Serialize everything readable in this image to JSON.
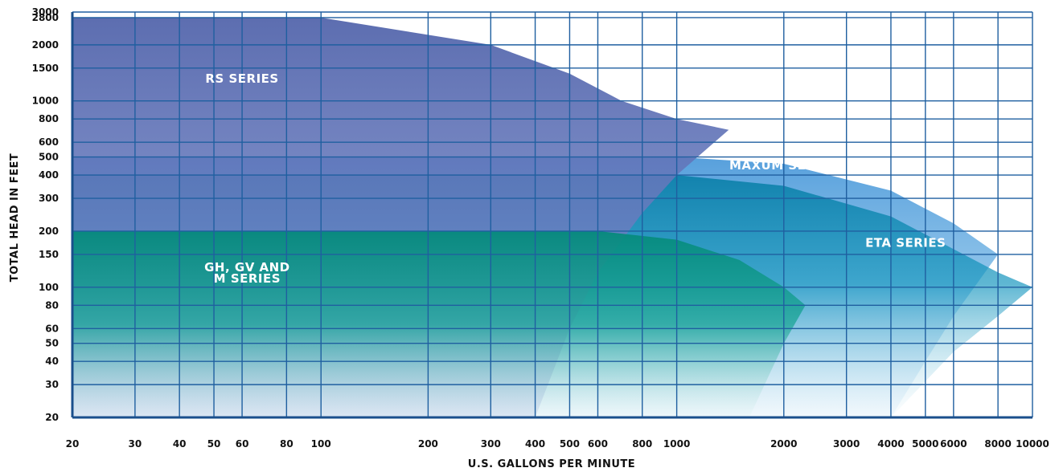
{
  "chart_data": {
    "type": "area",
    "xlabel": "U.S. GALLONS PER MINUTE",
    "ylabel": "TOTAL HEAD IN FEET",
    "x_scale": "log",
    "y_scale": "log",
    "xlim": [
      20,
      10000
    ],
    "ylim": [
      20,
      3000
    ],
    "grid": true,
    "x_ticks": [
      "20",
      "30",
      "40",
      "50",
      "60",
      "80",
      "100",
      "200",
      "300",
      "400",
      "500",
      "600",
      "800",
      "1000",
      "2000",
      "3000",
      "4000",
      "5000",
      "6000",
      "8000",
      "10000"
    ],
    "y_ticks": [
      "3000",
      "2800",
      "2000",
      "1500",
      "1000",
      "800",
      "600",
      "500",
      "400",
      "300",
      "200",
      "150",
      "100",
      "80",
      "60",
      "50",
      "40",
      "30",
      "20"
    ],
    "regions": [
      {
        "label": "RS SERIES",
        "color": "#5a6fb0",
        "boundary": [
          [
            20,
            20
          ],
          [
            20,
            2800
          ],
          [
            100,
            2800
          ],
          [
            300,
            2000
          ],
          [
            500,
            1400
          ],
          [
            700,
            1000
          ],
          [
            1000,
            800
          ],
          [
            1400,
            700
          ],
          [
            1000,
            400
          ],
          [
            800,
            250
          ],
          [
            600,
            120
          ],
          [
            500,
            60
          ],
          [
            400,
            20
          ]
        ]
      },
      {
        "label": "MAXUM SERIES",
        "color": "#2a8fd0",
        "boundary": [
          [
            20,
            20
          ],
          [
            20,
            500
          ],
          [
            1000,
            500
          ],
          [
            2000,
            460
          ],
          [
            4000,
            330
          ],
          [
            6000,
            220
          ],
          [
            8000,
            150
          ],
          [
            6000,
            70
          ],
          [
            5000,
            40
          ],
          [
            4000,
            20
          ]
        ]
      },
      {
        "label": "ETA SERIES",
        "color": "#0590b8",
        "boundary": [
          [
            20,
            20
          ],
          [
            20,
            400
          ],
          [
            1000,
            400
          ],
          [
            2000,
            350
          ],
          [
            4000,
            240
          ],
          [
            6000,
            160
          ],
          [
            8000,
            120
          ],
          [
            10000,
            100
          ],
          [
            8000,
            70
          ],
          [
            6000,
            45
          ],
          [
            4000,
            20
          ]
        ]
      },
      {
        "label": "GH, GV AND",
        "label2": "M SERIES",
        "color": "#07968a",
        "boundary": [
          [
            20,
            20
          ],
          [
            20,
            200
          ],
          [
            600,
            200
          ],
          [
            1000,
            180
          ],
          [
            1500,
            140
          ],
          [
            2000,
            100
          ],
          [
            2300,
            80
          ],
          [
            2000,
            50
          ],
          [
            1600,
            20
          ]
        ]
      }
    ]
  }
}
